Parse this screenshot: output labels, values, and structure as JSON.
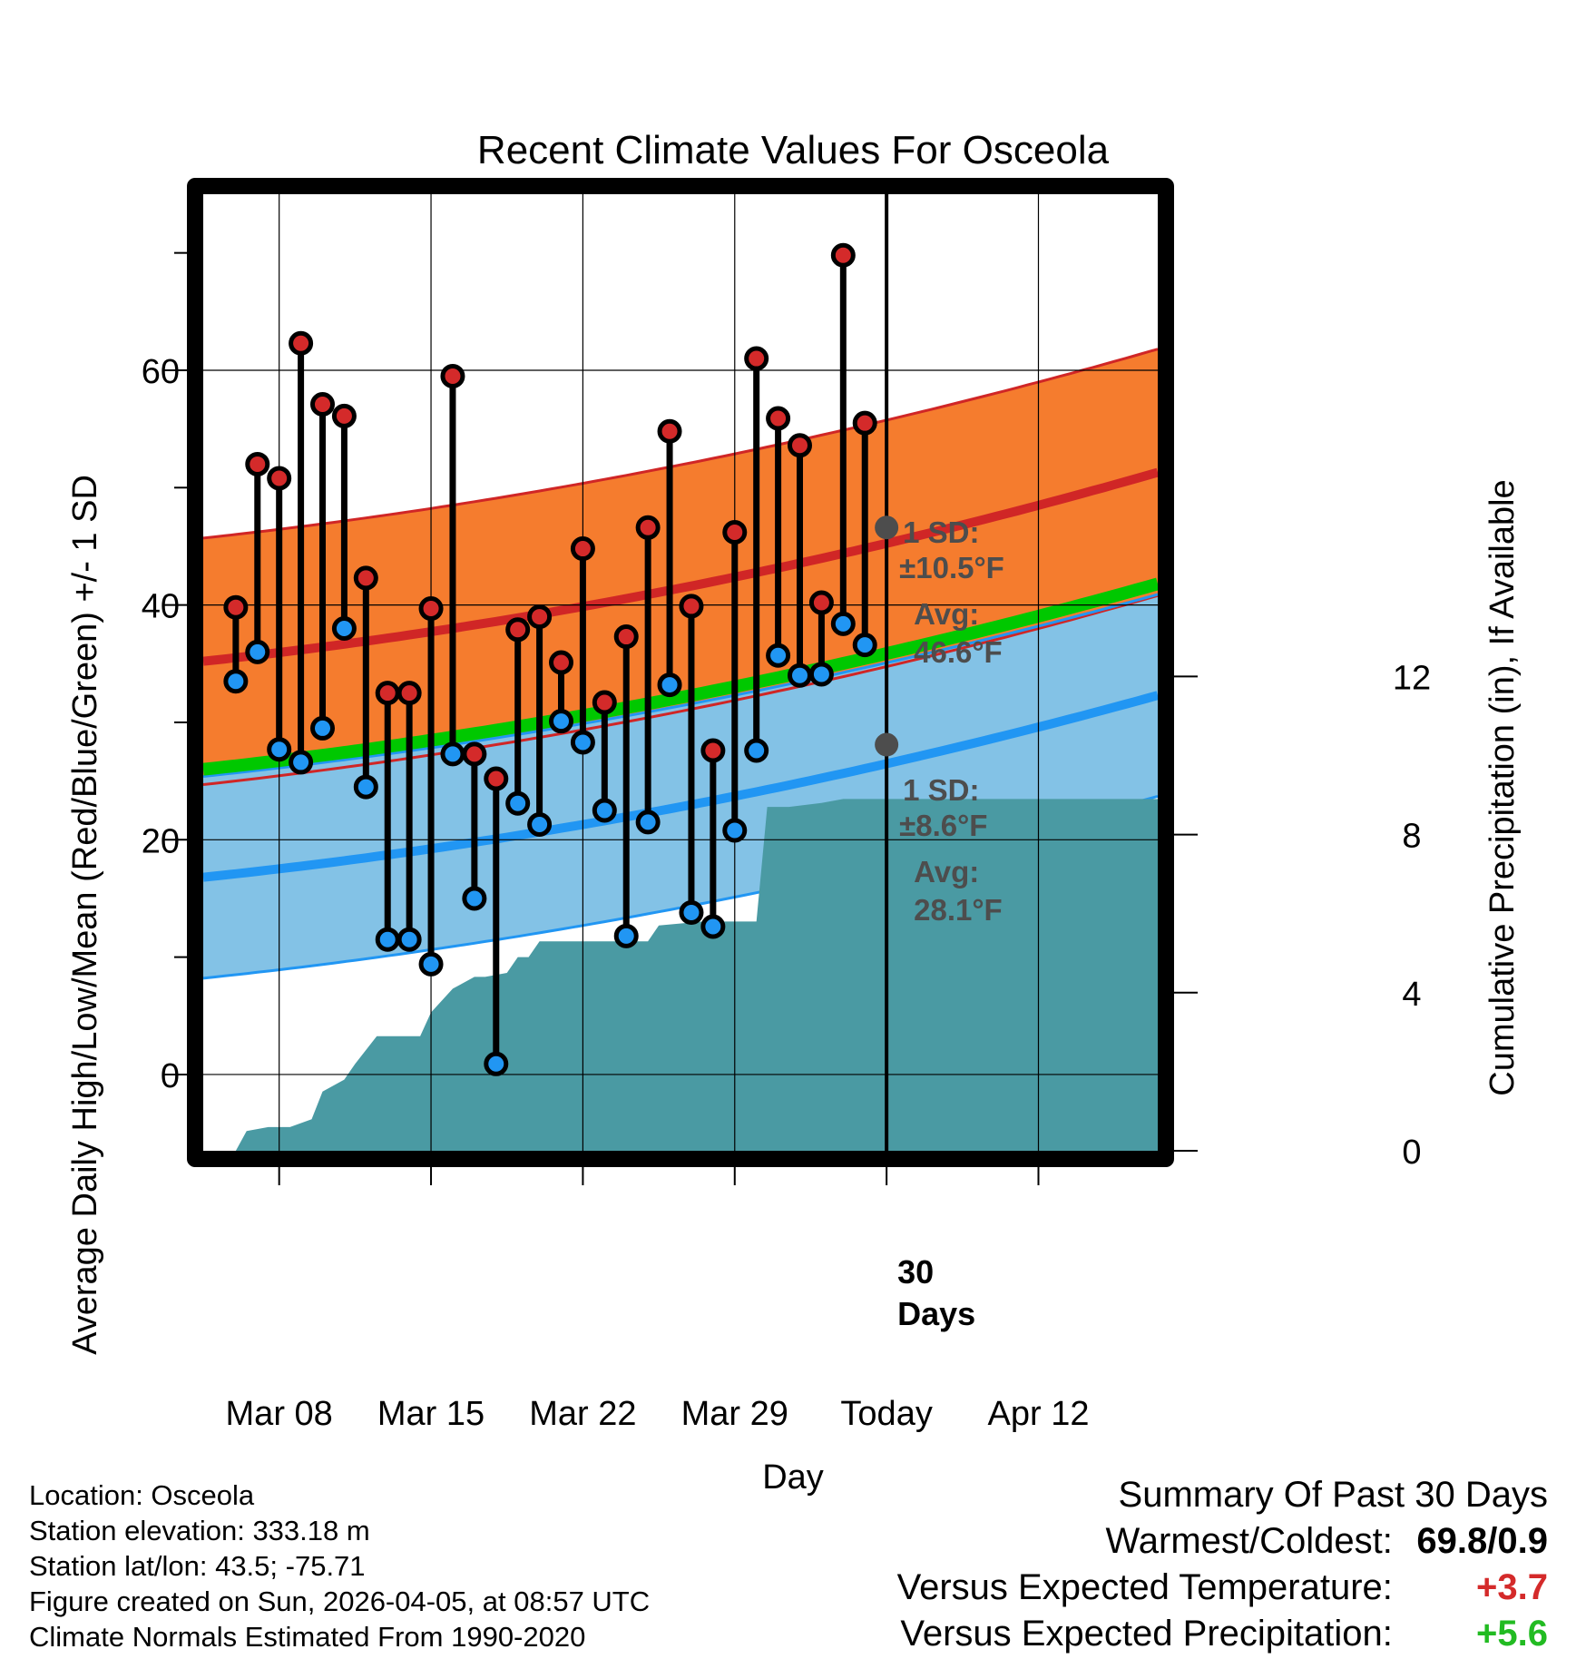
{
  "chart_data": {
    "type": "line",
    "title": "Recent Climate Values For Osceola",
    "xlabel": "Day",
    "ylabel": "Average Daily High/Low/Mean (Red/Blue/Green) +/- 1 SD",
    "y2label": "Cumulative Precipitation (in), If Available",
    "ylim": [
      -6.5,
      75
    ],
    "y2lim": [
      0,
      24.2
    ],
    "xlim": [
      -31.5,
      12.5
    ],
    "x_ticks": [
      {
        "x": -28,
        "label": "Mar 08"
      },
      {
        "x": -21,
        "label": "Mar 15"
      },
      {
        "x": -14,
        "label": "Mar 22"
      },
      {
        "x": -7,
        "label": "Mar 29"
      },
      {
        "x": 0,
        "label": "Today"
      },
      {
        "x": 7,
        "label": "Apr 12"
      }
    ],
    "y_ticks": [
      0,
      20,
      40,
      60
    ],
    "y2_ticks": [
      0,
      4,
      8,
      12
    ],
    "today_marker": {
      "x": 0,
      "label": "30 Days"
    },
    "normals": {
      "high_mean": {
        "start": 35.2,
        "end": 51.3
      },
      "high_sd": 10.5,
      "low_mean": {
        "start": 16.8,
        "end": 32.3
      },
      "low_sd": 8.6,
      "mean": {
        "start": 26.0,
        "end": 41.8
      }
    },
    "high_label": {
      "sd": "1 SD:",
      "sd_value": "±10.5°F",
      "avg": "Avg:",
      "avg_value": "46.6°F",
      "value": 46.6
    },
    "low_label": {
      "sd": "1 SD:",
      "sd_value": "±8.6°F",
      "avg": "Avg:",
      "avg_value": "28.1°F",
      "value": 28.1
    },
    "daily": [
      {
        "x": -30,
        "high": 39.8,
        "low": 33.5
      },
      {
        "x": -29,
        "high": 52.0,
        "low": 36.0
      },
      {
        "x": -28,
        "high": 50.8,
        "low": 27.7
      },
      {
        "x": -27,
        "high": 62.3,
        "low": 26.6
      },
      {
        "x": -26,
        "high": 57.1,
        "low": 29.5
      },
      {
        "x": -25,
        "high": 56.1,
        "low": 38.0
      },
      {
        "x": -24,
        "high": 42.3,
        "low": 24.5
      },
      {
        "x": -23,
        "high": 32.5,
        "low": 11.5
      },
      {
        "x": -22,
        "high": 32.5,
        "low": 11.5
      },
      {
        "x": -21,
        "high": 39.7,
        "low": 9.4
      },
      {
        "x": -20,
        "high": 59.5,
        "low": 27.3
      },
      {
        "x": -19,
        "high": 27.3,
        "low": 15.0
      },
      {
        "x": -18,
        "high": 25.2,
        "low": 0.9
      },
      {
        "x": -17,
        "high": 37.9,
        "low": 23.1
      },
      {
        "x": -16,
        "high": 39.0,
        "low": 21.3
      },
      {
        "x": -15,
        "high": 35.1,
        "low": 30.1
      },
      {
        "x": -14,
        "high": 44.8,
        "low": 28.3
      },
      {
        "x": -13,
        "high": 31.7,
        "low": 22.5
      },
      {
        "x": -12,
        "high": 37.3,
        "low": 11.8
      },
      {
        "x": -11,
        "high": 46.6,
        "low": 21.5
      },
      {
        "x": -10,
        "high": 54.8,
        "low": 33.2
      },
      {
        "x": -9,
        "high": 39.9,
        "low": 13.8
      },
      {
        "x": -8,
        "high": 27.6,
        "low": 12.6
      },
      {
        "x": -7,
        "high": 46.2,
        "low": 20.8
      },
      {
        "x": -6,
        "high": 61.0,
        "low": 27.6
      },
      {
        "x": -5,
        "high": 55.9,
        "low": 35.7
      },
      {
        "x": -4,
        "high": 53.6,
        "low": 34.0
      },
      {
        "x": -3,
        "high": 40.2,
        "low": 34.1
      },
      {
        "x": -2,
        "high": 69.8,
        "low": 38.4
      },
      {
        "x": -1,
        "high": 55.5,
        "low": 36.6
      }
    ],
    "precip_cumulative": [
      {
        "x": -30,
        "y": 0.0
      },
      {
        "x": -29.5,
        "y": 0.5
      },
      {
        "x": -28.5,
        "y": 0.6
      },
      {
        "x": -27.5,
        "y": 0.6
      },
      {
        "x": -26.5,
        "y": 0.8
      },
      {
        "x": -26,
        "y": 1.5
      },
      {
        "x": -25,
        "y": 1.8
      },
      {
        "x": -24.5,
        "y": 2.2
      },
      {
        "x": -23.5,
        "y": 2.9
      },
      {
        "x": -22.5,
        "y": 2.9
      },
      {
        "x": -21.5,
        "y": 2.9
      },
      {
        "x": -21,
        "y": 3.5
      },
      {
        "x": -20.5,
        "y": 3.8
      },
      {
        "x": -20,
        "y": 4.1
      },
      {
        "x": -19,
        "y": 4.4
      },
      {
        "x": -18.5,
        "y": 4.4
      },
      {
        "x": -17.5,
        "y": 4.5
      },
      {
        "x": -17,
        "y": 4.9
      },
      {
        "x": -16.5,
        "y": 4.9
      },
      {
        "x": -16,
        "y": 5.3
      },
      {
        "x": -15.5,
        "y": 5.3
      },
      {
        "x": -15,
        "y": 5.3
      },
      {
        "x": -14.5,
        "y": 5.3
      },
      {
        "x": -13,
        "y": 5.3
      },
      {
        "x": -11,
        "y": 5.3
      },
      {
        "x": -10.5,
        "y": 5.7
      },
      {
        "x": -8.5,
        "y": 5.8
      },
      {
        "x": -6,
        "y": 5.8
      },
      {
        "x": -5.5,
        "y": 8.7
      },
      {
        "x": -4.5,
        "y": 8.7
      },
      {
        "x": -3,
        "y": 8.8
      },
      {
        "x": -2,
        "y": 8.9
      },
      {
        "x": 12.5,
        "y": 8.9
      }
    ],
    "colors": {
      "high_band": "#f57c2e",
      "high_line": "#d02626",
      "low_band": "#83c2e6",
      "low_line": "#2196f3",
      "overlap": "#921818",
      "mean_line": "#00c800",
      "precip": "#4a9aa3",
      "high_dot": "#d42a2a",
      "low_dot": "#2196f3",
      "label_text": "#4d4d4d",
      "marker": "#4d4d4d"
    }
  },
  "footer": {
    "location": "Location: Osceola",
    "elevation": "Station elevation: 333.18 m",
    "latlon": "Station lat/lon: 43.5; -75.71",
    "created": "Figure created on Sun, 2026-04-05, at 08:57 UTC",
    "normals": "Climate Normals Estimated From 1990-2020"
  },
  "summary": {
    "heading": "Summary Of Past 30 Days",
    "warmest_label": "Warmest/Coldest:",
    "warmest_value": "69.8/0.9",
    "temp_label": "Versus Expected Temperature:",
    "temp_value": "+3.7",
    "precip_label": "Versus Expected Precipitation:",
    "precip_value": "+5.6",
    "temp_color": "#d42a2a",
    "precip_color": "#22bb22"
  }
}
